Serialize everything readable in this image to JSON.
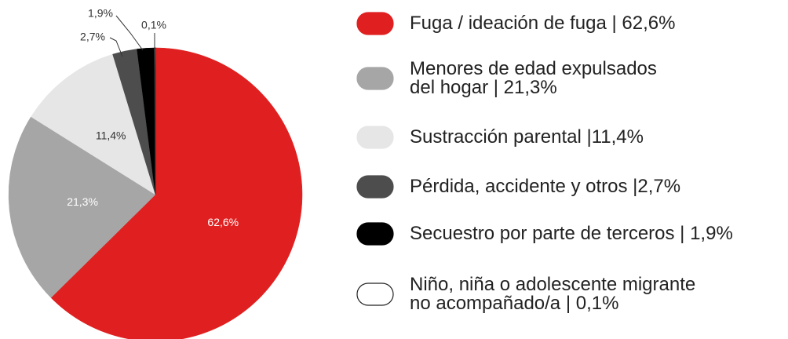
{
  "chart_data": {
    "type": "pie",
    "categories": [
      "Fuga / ideación de fuga | 62,6%",
      "Menores de edad expulsados\ndel hogar | 21,3%",
      "Sustracción parental |11,4%",
      "Pérdida, accidente y otros |2,7%",
      "Secuestro por parte de terceros | 1,9%",
      "Niño, niña o adolescente migrante\nno acompañado/a | 0,1%"
    ],
    "values": [
      62.6,
      21.3,
      11.4,
      2.7,
      1.9,
      0.1
    ],
    "value_labels": [
      "62,6%",
      "21,3%",
      "11,4%",
      "2,7%",
      "1,9%",
      "0,1%"
    ],
    "colors": [
      "#e02020",
      "#a6a6a6",
      "#e6e6e6",
      "#4d4d4d",
      "#000000",
      "#ffffff"
    ]
  }
}
